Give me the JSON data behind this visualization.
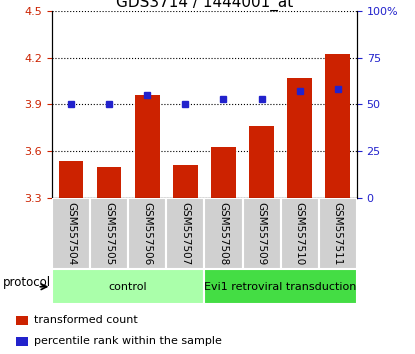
{
  "title": "GDS3714 / 1444001_at",
  "samples": [
    "GSM557504",
    "GSM557505",
    "GSM557506",
    "GSM557507",
    "GSM557508",
    "GSM557509",
    "GSM557510",
    "GSM557511"
  ],
  "transformed_count": [
    3.54,
    3.5,
    3.96,
    3.51,
    3.63,
    3.76,
    4.07,
    4.22
  ],
  "percentile_rank": [
    50,
    50,
    55,
    50,
    53,
    53,
    57,
    58
  ],
  "ylim_left": [
    3.3,
    4.5
  ],
  "ylim_right": [
    0,
    100
  ],
  "yticks_left": [
    3.3,
    3.6,
    3.9,
    4.2,
    4.5
  ],
  "yticks_right": [
    0,
    25,
    50,
    75,
    100
  ],
  "bar_color": "#cc2200",
  "dot_color": "#2222cc",
  "bar_bottom": 3.3,
  "protocol_groups": [
    {
      "label": "control",
      "start": 0,
      "end": 4,
      "color": "#aaffaa"
    },
    {
      "label": "Evi1 retroviral transduction",
      "start": 4,
      "end": 8,
      "color": "#44dd44"
    }
  ],
  "protocol_label": "protocol",
  "legend_bar_label": "transformed count",
  "legend_dot_label": "percentile rank within the sample",
  "title_fontsize": 11,
  "tick_fontsize": 8,
  "label_fontsize": 7.5
}
